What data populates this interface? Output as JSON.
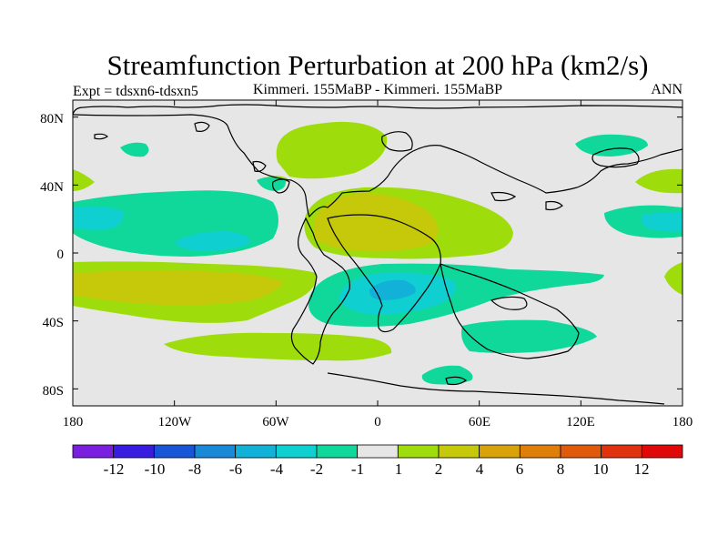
{
  "title": "Streamfunction Perturbation at 200 hPa (km2/s)",
  "left_subtitle": "Expt = tdsxn6-tdsxn5",
  "center_subtitle": "Kimmeri. 155MaBP - Kimmeri. 155MaBP",
  "right_subtitle": "ANN",
  "map": {
    "projection": "cylindrical equidistant",
    "background_color": "#e6e6e6",
    "coastline_color": "#000000",
    "lon_range": [
      -180,
      180
    ],
    "lat_range": [
      -90,
      90
    ],
    "x_ticks": [
      "180",
      "120W",
      "60W",
      "0",
      "60E",
      "120E",
      "180"
    ],
    "y_ticks": [
      "80N",
      "40N",
      "0",
      "40S",
      "80S"
    ]
  },
  "colorbar": {
    "colors": [
      "#7a1fe0",
      "#3a1ce0",
      "#1856d8",
      "#1a8ad8",
      "#12b2d8",
      "#10cfd0",
      "#10d89a",
      "#e6e6e6",
      "#9fdc0c",
      "#c6c80a",
      "#d9a208",
      "#e07e0a",
      "#e05a0c",
      "#e0320e",
      "#e00808"
    ],
    "labels": [
      "-12",
      "-10",
      "-8",
      "-6",
      "-4",
      "-2",
      "-1",
      "1",
      "2",
      "4",
      "6",
      "8",
      "10",
      "12"
    ]
  },
  "contour_fill": {
    "green_positive": "#9fdc0c",
    "yellow_positive": "#c6c80a",
    "teal_negative": "#10d89a",
    "cyan_negative": "#10cfd0",
    "blue_negative": "#12b2d8"
  }
}
